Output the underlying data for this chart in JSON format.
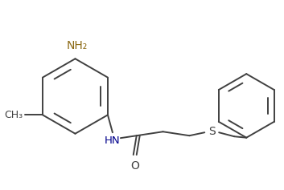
{
  "bg_color": "#ffffff",
  "line_color": "#404040",
  "nh2_color": "#8B6914",
  "hn_color": "#00008B",
  "label_NH2": "NH₂",
  "label_HN": "HN",
  "label_S": "S",
  "label_O": "O",
  "figsize": [
    3.53,
    2.37
  ],
  "dpi": 100,
  "lw": 1.4
}
